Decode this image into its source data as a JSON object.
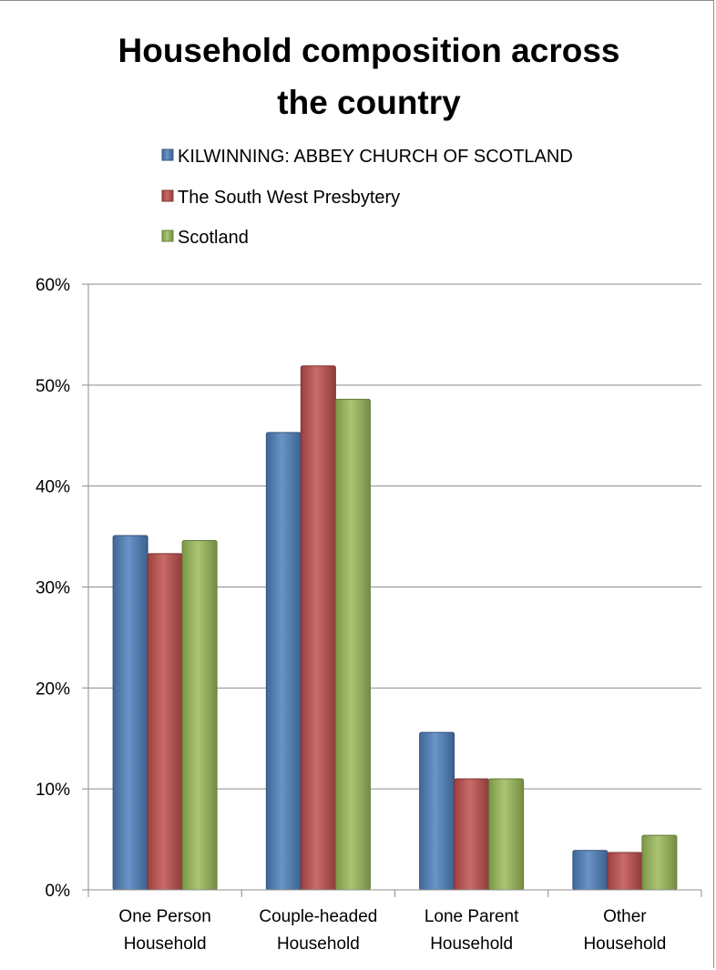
{
  "chart_data": {
    "type": "bar",
    "title_lines": [
      "Household composition across",
      "the country"
    ],
    "categories": [
      [
        "One Person",
        "Household"
      ],
      [
        "Couple-headed",
        "Household"
      ],
      [
        "Lone Parent",
        "Household"
      ],
      [
        "Other",
        "Household"
      ]
    ],
    "series": [
      {
        "name": "KILWINNING: ABBEY CHURCH OF SCOTLAND",
        "color": "#4f81bd",
        "values": [
          35.1,
          45.3,
          15.6,
          3.9
        ]
      },
      {
        "name": "The South West Presbytery",
        "color": "#c0504d",
        "values": [
          33.3,
          51.9,
          11.0,
          3.7
        ]
      },
      {
        "name": "Scotland",
        "color": "#9bbb59",
        "values": [
          34.6,
          48.6,
          11.0,
          5.4
        ]
      }
    ],
    "y_ticks": [
      "0%",
      "10%",
      "20%",
      "30%",
      "40%",
      "50%",
      "60%"
    ],
    "ylim": [
      0,
      60
    ],
    "ylabel": "",
    "xlabel": "",
    "grid": true,
    "legend_position": "top"
  }
}
